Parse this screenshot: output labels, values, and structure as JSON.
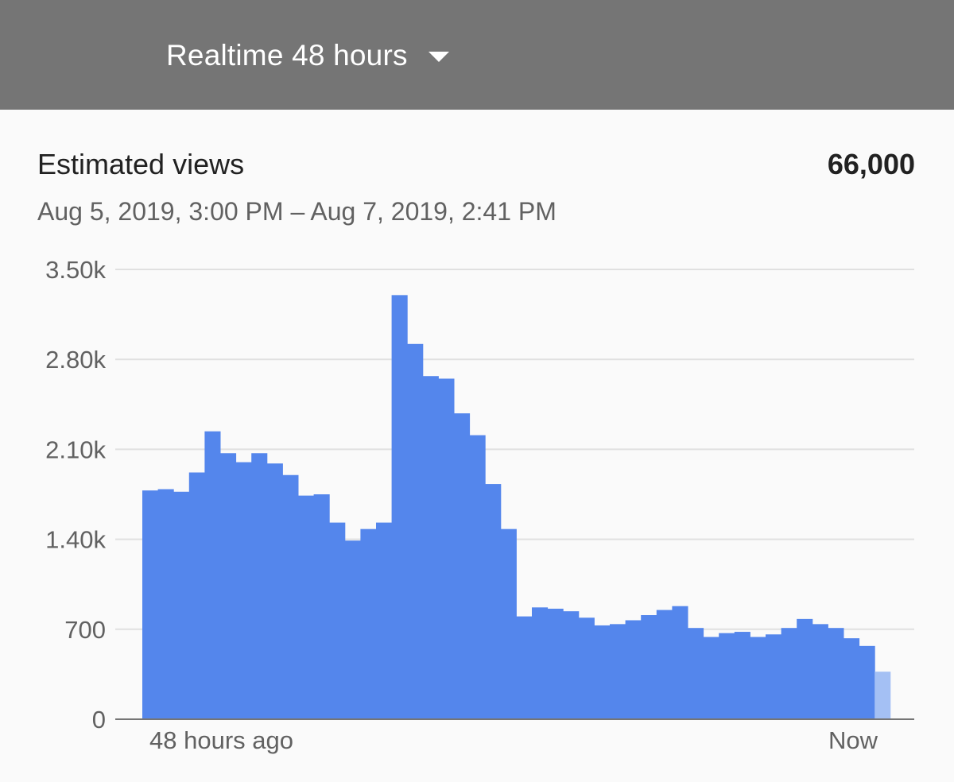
{
  "header": {
    "period_label": "Realtime 48 hours",
    "dropdown_icon": "arrow-drop-down-icon"
  },
  "card": {
    "metric_title": "Estimated views",
    "metric_total": "66,000",
    "date_range": "Aug 5, 2019, 3:00 PM – Aug 7, 2019, 2:41 PM"
  },
  "colors": {
    "header_bg": "#757575",
    "bar": "#5486ec",
    "bar_partial": "#a4c0f4",
    "grid": "#e0e0e0",
    "axis": "#757575"
  },
  "chart_data": {
    "type": "bar",
    "x_start_label": "48 hours ago",
    "x_end_label": "Now",
    "y_ticks": [
      "0",
      "700",
      "1.40k",
      "2.10k",
      "2.80k",
      "3.50k"
    ],
    "ylim": [
      0,
      3500
    ],
    "grid": true,
    "values": [
      1780,
      1790,
      1770,
      1920,
      2240,
      2070,
      2000,
      2070,
      1990,
      1900,
      1740,
      1750,
      1530,
      1390,
      1480,
      1530,
      3300,
      2920,
      2670,
      2650,
      2380,
      2210,
      1830,
      1480,
      800,
      870,
      860,
      840,
      790,
      730,
      740,
      770,
      810,
      850,
      880,
      710,
      640,
      670,
      680,
      640,
      660,
      710,
      780,
      740,
      710,
      630,
      570,
      370
    ],
    "partial_last_bar": true
  }
}
